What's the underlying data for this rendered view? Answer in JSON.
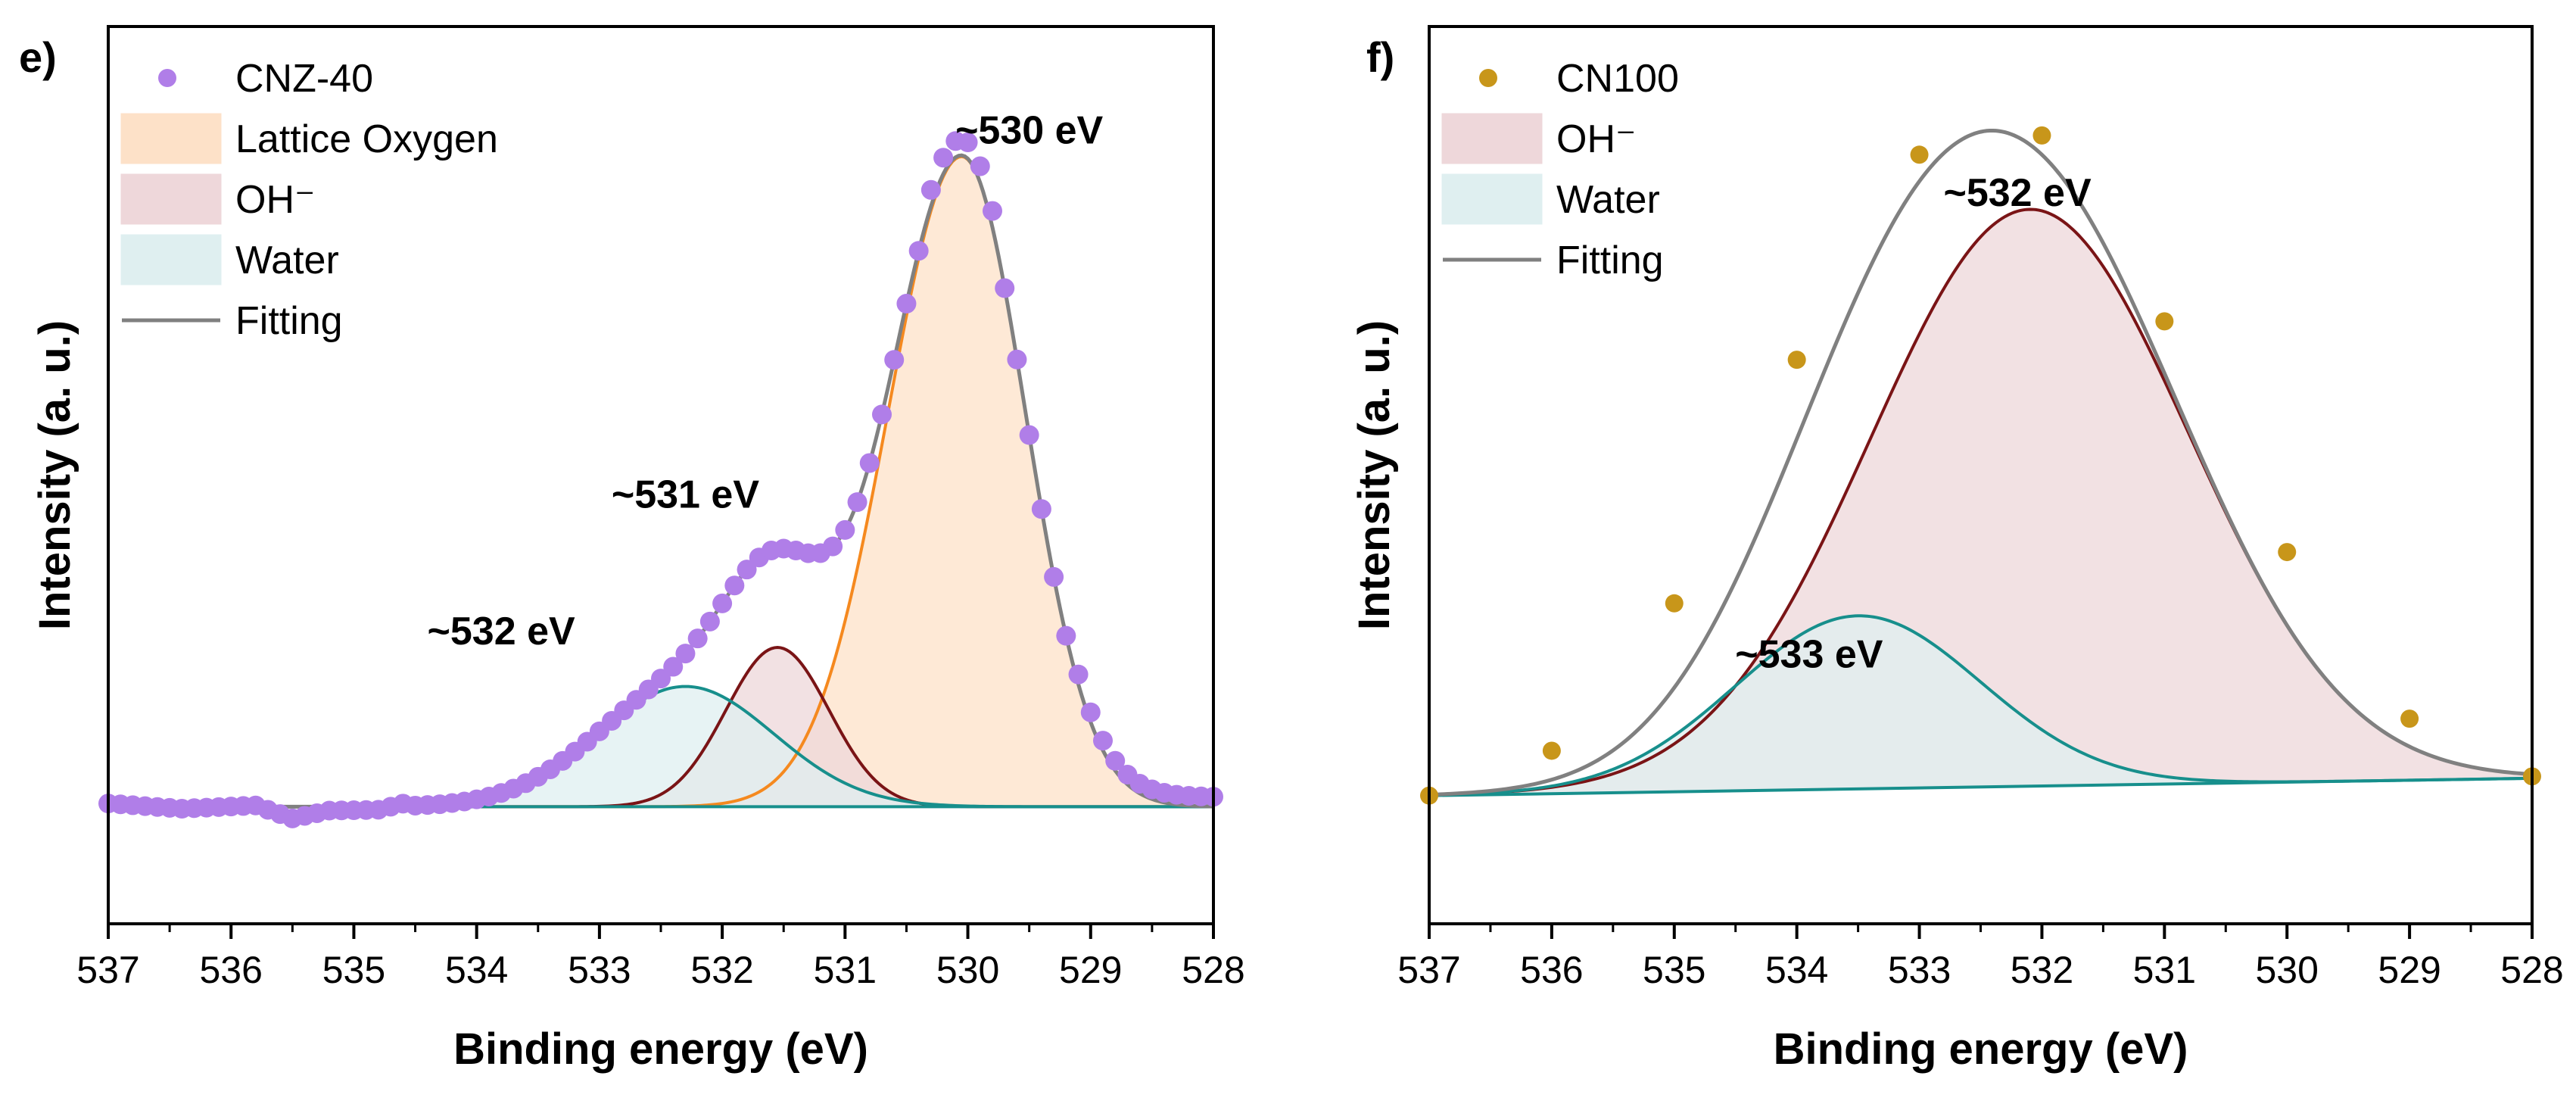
{
  "chart_data": [
    {
      "panel": "e)",
      "type": "line",
      "xlabel": "Binding energy (eV)",
      "ylabel": "Intensity (a. u.)",
      "xlim": [
        537,
        528
      ],
      "x_reversed": true,
      "ylim": [
        -0.18,
        1.2
      ],
      "y_ticks_shown": false,
      "x_ticks": [
        537,
        536,
        535,
        534,
        533,
        532,
        531,
        530,
        529,
        528
      ],
      "legend": {
        "position": "top-left",
        "entries": [
          {
            "label": "CNZ-40",
            "kind": "marker",
            "color": "#b07ee8"
          },
          {
            "label": "Lattice Oxygen",
            "kind": "area",
            "color": "#fde1c8"
          },
          {
            "label": "OH⁻",
            "kind": "area",
            "color": "#eed7da"
          },
          {
            "label": "Water",
            "kind": "area",
            "color": "#dfeff0"
          },
          {
            "label": "Fitting",
            "kind": "line",
            "color": "#808080"
          }
        ]
      },
      "components": [
        {
          "name": "Lattice Oxygen",
          "center": 530.05,
          "height": 1.0,
          "sigma_low_eV_side": 0.52,
          "sigma_high_eV_side": 0.6,
          "line_color": "#f5891f",
          "fill": "#fde1c8"
        },
        {
          "name": "OH⁻",
          "center": 531.55,
          "height": 0.245,
          "sigma": 0.42,
          "line_color": "#7a1416",
          "fill": "#eed7da"
        },
        {
          "name": "Water",
          "center": 532.3,
          "height": 0.185,
          "sigma": 0.72,
          "line_color": "#178f8c",
          "fill": "#dfeff0"
        }
      ],
      "fitting_color": "#808080",
      "measured": {
        "name": "CNZ-40",
        "color": "#b07ee8",
        "x_start": 537,
        "x_end": 528,
        "x_step": 0.1,
        "baseline_points": [
          [
            537,
            0.005
          ],
          [
            536.4,
            -0.003
          ],
          [
            535.8,
            0.002
          ],
          [
            535.5,
            -0.018
          ],
          [
            535.2,
            -0.006
          ],
          [
            534.8,
            -0.005
          ],
          [
            534.5,
            0.008
          ]
        ]
      },
      "annotations": [
        {
          "text": "~530 eV",
          "x": 529.5,
          "y": 1.02
        },
        {
          "text": "~531 eV",
          "x": 532.3,
          "y": 0.46
        },
        {
          "text": "~532 eV",
          "x": 533.8,
          "y": 0.25
        }
      ]
    },
    {
      "panel": "f)",
      "type": "line",
      "xlabel": "Binding energy (eV)",
      "ylabel": "Intensity (a. u.)",
      "xlim": [
        537,
        528
      ],
      "x_reversed": true,
      "ylim": [
        -0.2,
        1.2
      ],
      "y_ticks_shown": false,
      "x_ticks": [
        537,
        536,
        535,
        534,
        533,
        532,
        531,
        530,
        529,
        528
      ],
      "legend": {
        "position": "top-left",
        "entries": [
          {
            "label": "CN100",
            "kind": "marker",
            "color": "#c8961a"
          },
          {
            "label": "OH⁻",
            "kind": "area",
            "color": "#eed7da"
          },
          {
            "label": "Water",
            "kind": "area",
            "color": "#dfeff0"
          },
          {
            "label": "Fitting",
            "kind": "line",
            "color": "#808080"
          }
        ]
      },
      "components": [
        {
          "name": "OH⁻",
          "center": 532.1,
          "height": 0.9,
          "sigma": 1.3,
          "line_color": "#7a1416",
          "fill": "#eed7da"
        },
        {
          "name": "Water",
          "center": 533.5,
          "height": 0.27,
          "sigma": 1.0,
          "line_color": "#178f8c",
          "fill": "#dfeff0"
        }
      ],
      "background_line": {
        "y_at_537": 0.0,
        "y_at_528": 0.027
      },
      "fitting_color": "#808080",
      "measured": {
        "name": "CN100",
        "color": "#c8961a",
        "points": [
          [
            537,
            0.0
          ],
          [
            536,
            0.07
          ],
          [
            535,
            0.3
          ],
          [
            534,
            0.68
          ],
          [
            533,
            1.0
          ],
          [
            532,
            1.03
          ],
          [
            531,
            0.74
          ],
          [
            530,
            0.38
          ],
          [
            529,
            0.12
          ],
          [
            528,
            0.03
          ]
        ]
      },
      "annotations": [
        {
          "text": "~532 eV",
          "x": 532.2,
          "y": 0.92
        },
        {
          "text": "~533 eV",
          "x": 533.9,
          "y": 0.2
        }
      ]
    }
  ]
}
